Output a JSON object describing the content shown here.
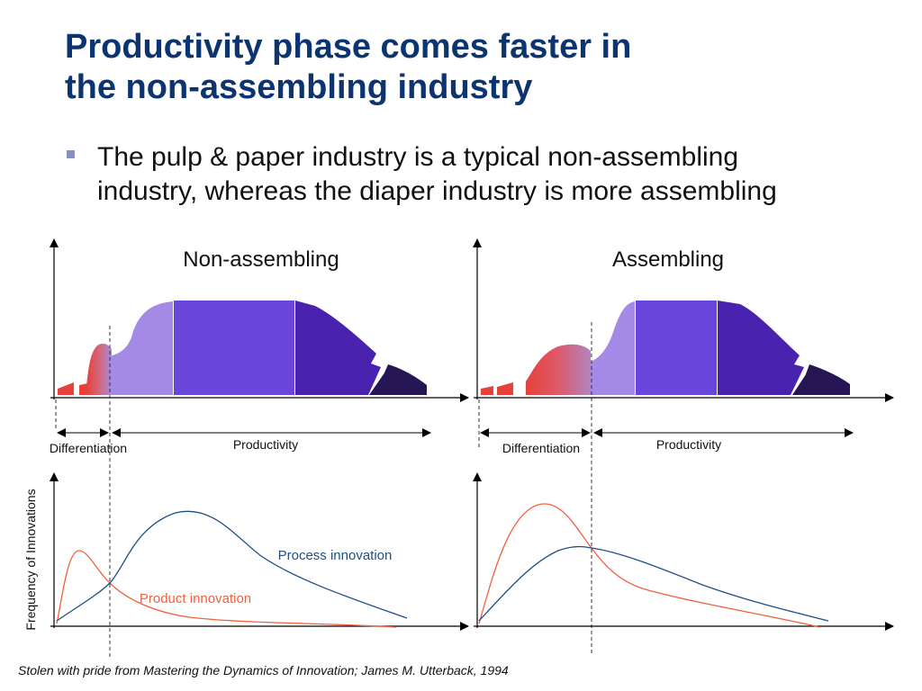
{
  "title": {
    "line1": "Productivity phase comes faster in",
    "line2": "the non-assembling industry"
  },
  "bullet": {
    "text_line1": "The pulp & paper industry is a typical non-assembling",
    "text_line2": "industry, whereas the diaper industry is more assembling"
  },
  "panels": {
    "left": {
      "heading": "Non-assembling",
      "phase_left": "Differentiation",
      "phase_right": "Productivity"
    },
    "right": {
      "heading": "Assembling",
      "phase_left": "Differentiation",
      "phase_right": "Productivity"
    }
  },
  "lower_chart": {
    "y_axis_label": "Frequency of Innovations",
    "process_label": "Process innovation",
    "product_label": "Product innovation"
  },
  "colors": {
    "title": "#0c3470",
    "product_curve": "#f0603c",
    "process_curve": "#1d4f84",
    "product_label": "#f0603c",
    "process_label": "#1d4f84",
    "red_phase": "#e8403a",
    "light_purple": "#a48ae6",
    "mid_purple": "#6a45dc",
    "dark_purple": "#4a22b0",
    "navy": "#261655"
  },
  "caption": "Stolen with pride from Mastering the Dynamics of Innovation; James M. Utterback, 1994"
}
